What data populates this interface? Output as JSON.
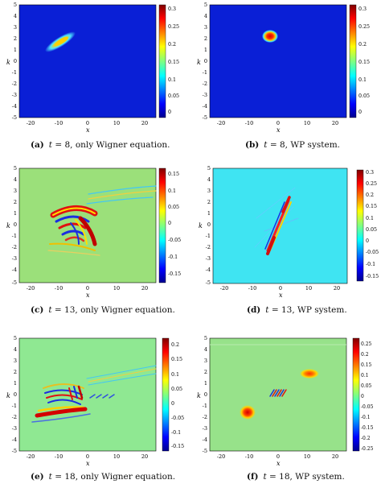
{
  "figure": {
    "panels": [
      {
        "id": "a",
        "label": "(a)",
        "t_label": "t",
        "t_value": "= 8,",
        "caption_rest": "only Wigner equation.",
        "x_axis_label": "x",
        "y_axis_label": "k",
        "x_ticks": [
          "-20",
          "-10",
          "0",
          "10",
          "20"
        ],
        "y_ticks": [
          "5",
          "4",
          "3",
          "2",
          "1",
          "0",
          "-1",
          "-2",
          "-3",
          "-4",
          "-5"
        ],
        "colorbar_ticks": [
          "0.3",
          "0.25",
          "0.2",
          "0.15",
          "0.1",
          "0.05",
          "0"
        ],
        "background": "#0a1fd6"
      },
      {
        "id": "b",
        "label": "(b)",
        "t_label": "t",
        "t_value": "= 8,",
        "caption_rest": "WP system.",
        "x_axis_label": "x",
        "y_axis_label": "k",
        "x_ticks": [
          "-20",
          "-10",
          "0",
          "10",
          "20"
        ],
        "y_ticks": [
          "5",
          "4",
          "3",
          "2",
          "1",
          "0",
          "-1",
          "-2",
          "-3",
          "-4",
          "-5"
        ],
        "colorbar_ticks": [
          "0.3",
          "0.25",
          "0.2",
          "0.15",
          "0.1",
          "0.05",
          "0"
        ],
        "background": "#0a1fd6"
      },
      {
        "id": "c",
        "label": "(c)",
        "t_label": "t",
        "t_value": "= 13,",
        "caption_rest": "only Wigner equation.",
        "x_axis_label": "x",
        "y_axis_label": "k",
        "x_ticks": [
          "-20",
          "-10",
          "0",
          "10",
          "20"
        ],
        "y_ticks": [
          "5",
          "4",
          "3",
          "2",
          "1",
          "0",
          "-1",
          "-2",
          "-3",
          "-4",
          "-5"
        ],
        "colorbar_ticks": [
          "0.15",
          "0.1",
          "0.05",
          "0",
          "-0.05",
          "-0.1",
          "-0.15"
        ],
        "background": "#9be07a"
      },
      {
        "id": "d",
        "label": "(d)",
        "t_label": "t",
        "t_value": "= 13,",
        "caption_rest": "WP system.",
        "x_axis_label": "x",
        "y_axis_label": "k",
        "x_ticks": [
          "-20",
          "-10",
          "0",
          "10",
          "20"
        ],
        "y_ticks": [
          "5",
          "4",
          "3",
          "2",
          "1",
          "0",
          "-1",
          "-2",
          "-3",
          "-4",
          "-5"
        ],
        "colorbar_ticks": [
          "0.3",
          "0.25",
          "0.2",
          "0.15",
          "0.1",
          "0.05",
          "0",
          "-0.05",
          "-0.1",
          "-0.15"
        ],
        "background": "#3fe4f2"
      },
      {
        "id": "e",
        "label": "(e)",
        "t_label": "t",
        "t_value": "= 18,",
        "caption_rest": "only Wigner equation.",
        "x_axis_label": "x",
        "y_axis_label": "k",
        "x_ticks": [
          "-20",
          "-10",
          "0",
          "10",
          "20"
        ],
        "y_ticks": [
          "5",
          "4",
          "3",
          "2",
          "1",
          "0",
          "-1",
          "-2",
          "-3",
          "-4",
          "-5"
        ],
        "colorbar_ticks": [
          "0.2",
          "0.15",
          "0.1",
          "0.05",
          "0",
          "-0.05",
          "-0.1",
          "-0.15"
        ],
        "background": "#8fe892"
      },
      {
        "id": "f",
        "label": "(f)",
        "t_label": "t",
        "t_value": "= 18,",
        "caption_rest": "WP system.",
        "x_axis_label": "x",
        "y_axis_label": "k",
        "x_ticks": [
          "-20",
          "-10",
          "0",
          "10",
          "20"
        ],
        "y_ticks": [
          "5",
          "4",
          "3",
          "2",
          "1",
          "0",
          "-1",
          "-2",
          "-3",
          "-4",
          "-5"
        ],
        "colorbar_ticks": [
          "0.25",
          "0.2",
          "0.15",
          "0.1",
          "0.05",
          "0",
          "-0.05",
          "-0.1",
          "-0.15",
          "-0.2",
          "-0.25"
        ],
        "background": "#97e28a"
      }
    ]
  }
}
